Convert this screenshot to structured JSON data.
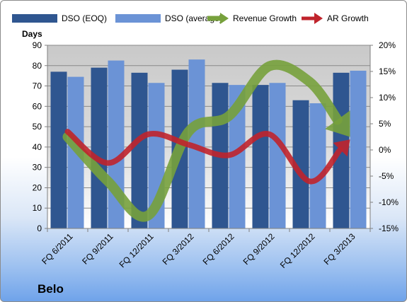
{
  "chart_data": {
    "type": "bar",
    "categories": [
      "FQ 6/2011",
      "FQ 9/2011",
      "FQ 12/2011",
      "FQ 3/2012",
      "FQ 6/2012",
      "FQ 9/2012",
      "FQ 12/2012",
      "FQ 3/2013"
    ],
    "series": [
      {
        "name": "DSO (EOQ)",
        "kind": "bar",
        "axis": "left",
        "color": "#2f5690",
        "values": [
          77,
          79,
          76.5,
          78,
          71.5,
          70.5,
          63,
          76.5
        ]
      },
      {
        "name": "DSO (average)",
        "kind": "bar",
        "axis": "left",
        "color": "#6b93d6",
        "values": [
          74.5,
          82.5,
          71.5,
          83,
          70.5,
          71.5,
          61.5,
          77.5
        ]
      },
      {
        "name": "Revenue Growth",
        "kind": "arrow-line",
        "axis": "right",
        "color": "#77a13c",
        "values": [
          2.5,
          -6,
          -12.5,
          3.5,
          6.5,
          16,
          13,
          2.5
        ]
      },
      {
        "name": "AR Growth",
        "kind": "arrow-line",
        "axis": "right",
        "color": "#c0242c",
        "values": [
          3.5,
          -2.5,
          3,
          1,
          -1,
          3,
          -6,
          2
        ]
      }
    ],
    "ylabel": "Days",
    "ylim": [
      0,
      90
    ],
    "yticks": [
      0,
      10,
      20,
      30,
      40,
      50,
      60,
      70,
      80,
      90
    ],
    "y2lim": [
      -15,
      20
    ],
    "y2ticks": [
      "-15%",
      "-10%",
      "-5%",
      "0%",
      "5%",
      "10%",
      "15%",
      "20%"
    ],
    "y2tick_values": [
      -15,
      -10,
      -5,
      0,
      5,
      10,
      15,
      20
    ],
    "grid": true,
    "legend_position": "top"
  },
  "company": "Belo"
}
